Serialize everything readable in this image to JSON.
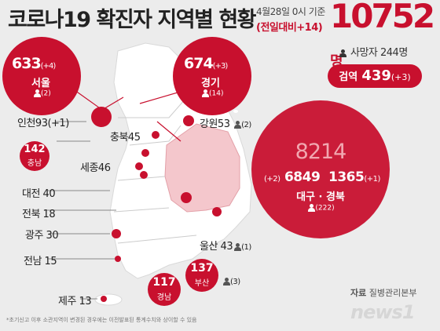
{
  "header": {
    "title": "코로나19 확진자 지역별 현황",
    "date": "4월28일 0시 기준",
    "change": "(전일대비+14)",
    "total": "10752",
    "total_unit": "명",
    "deaths": "사망자 244명",
    "quarantine_label": "검역",
    "quarantine_count": "439",
    "quarantine_change": "(+3)"
  },
  "regions": {
    "seoul": {
      "count": "633",
      "change": "(+4)",
      "name": "서울",
      "deaths": "(2)"
    },
    "gyeonggi": {
      "count": "674",
      "change": "(+3)",
      "name": "경기",
      "deaths": "(14)"
    },
    "incheon": {
      "label": "인천93(+1)"
    },
    "gangwon": {
      "label": "강원53",
      "deaths": "(2)"
    },
    "chungbuk": {
      "label": "충북45"
    },
    "chungnam": {
      "count": "142",
      "name": "충남"
    },
    "sejong": {
      "label": "세종46"
    },
    "daejeon": {
      "label": "대전 40"
    },
    "jeonbuk": {
      "label": "전북 18"
    },
    "gwangju": {
      "label": "광주 30"
    },
    "jeonnam": {
      "label": "전남 15"
    },
    "jeju": {
      "label": "제주 13"
    },
    "daegu_gyeongbuk": {
      "total": "8214",
      "daegu_change": "(+2)",
      "daegu": "6849",
      "gyeongbuk": "1365",
      "gyeongbuk_change": "(+1)",
      "name": "대구 · 경북",
      "deaths": "(222)"
    },
    "ulsan": {
      "label": "울산 43",
      "deaths": "(1)"
    },
    "busan": {
      "count": "137",
      "name": "부산",
      "deaths": "(3)"
    },
    "gyeongnam": {
      "count": "117",
      "name": "경남"
    }
  },
  "footer": {
    "source_label": "자료",
    "source": "질병관리본부",
    "note": "*초기신고 이후 소관지역이 변경된 경우에는 이전발표된 통계수치와 상이할 수 있음",
    "logo": "news1"
  },
  "colors": {
    "accent": "#c8102e",
    "map": "#ffffff",
    "daegu_area": "#f4c7cc"
  }
}
